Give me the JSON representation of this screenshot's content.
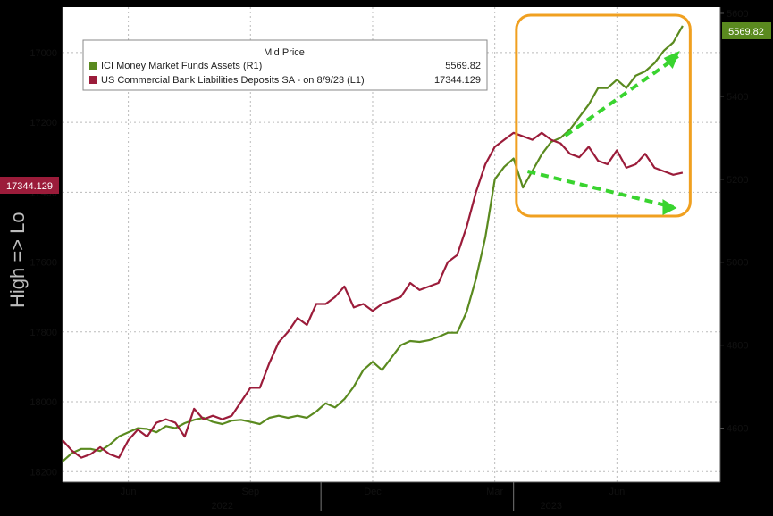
{
  "chart_data": {
    "type": "line",
    "legend": {
      "title": "Mid Price",
      "placement": "top-left",
      "entries": [
        {
          "label": "ICI Money Market Funds Assets  (R1)",
          "value": "5569.82",
          "color": "#5a8a1f"
        },
        {
          "label": "US Commercial Bank Liabilities Deposits SA -  on 8/9/23  (L1)",
          "value": "17344.129",
          "color": "#9b1c3a"
        }
      ]
    },
    "left_axis": {
      "label": "High => Lo",
      "inverted": true,
      "range": [
        16870,
        18230
      ],
      "ticks": [
        "17000",
        "17200",
        "17400",
        "17600",
        "17800",
        "18000",
        "18200"
      ],
      "tick_values": [
        17000,
        17200,
        17400,
        17600,
        17800,
        18000,
        18200
      ],
      "current_label": "17344.129"
    },
    "right_axis": {
      "range": [
        4470,
        5615
      ],
      "ticks": [
        "5600",
        "5400",
        "5200",
        "5000",
        "4800",
        "4600"
      ],
      "tick_values": [
        5600,
        5400,
        5200,
        5000,
        4800,
        4600
      ],
      "current_label": "5569.82"
    },
    "x_axis": {
      "range": [
        0,
        70
      ],
      "month_ticks": [
        "Jun",
        "Sep",
        "Dec",
        "Mar",
        "Jun"
      ],
      "month_positions": [
        7,
        20,
        33,
        46,
        59
      ],
      "year_labels": [
        "2022",
        "2023"
      ],
      "year_positions": [
        17,
        52
      ],
      "year_dividers": [
        27.5,
        48
      ]
    },
    "grid": true,
    "series": [
      {
        "name": "ICI Money Market Funds Assets  (R1)",
        "axis": "right",
        "color": "#5a8a1f",
        "x": [
          0,
          1,
          2,
          3,
          4,
          5,
          6,
          7,
          8,
          9,
          10,
          11,
          12,
          13,
          14,
          15,
          16,
          17,
          18,
          19,
          20,
          21,
          22,
          23,
          24,
          25,
          26,
          27,
          28,
          29,
          30,
          31,
          32,
          33,
          34,
          35,
          36,
          37,
          38,
          39,
          40,
          41,
          42,
          43,
          44,
          45,
          46,
          47,
          48,
          49,
          50,
          51,
          52,
          53,
          54,
          55,
          56,
          57,
          58,
          59,
          60,
          61,
          62,
          63,
          64,
          65,
          66
        ],
        "values": [
          4520,
          4540,
          4550,
          4550,
          4545,
          4560,
          4580,
          4590,
          4600,
          4598,
          4590,
          4605,
          4600,
          4612,
          4620,
          4625,
          4615,
          4610,
          4618,
          4620,
          4615,
          4610,
          4625,
          4630,
          4625,
          4630,
          4625,
          4640,
          4660,
          4650,
          4670,
          4700,
          4740,
          4760,
          4740,
          4770,
          4800,
          4810,
          4808,
          4812,
          4820,
          4830,
          4830,
          4880,
          4960,
          5060,
          5200,
          5230,
          5250,
          5180,
          5220,
          5260,
          5290,
          5300,
          5320,
          5350,
          5380,
          5420,
          5420,
          5440,
          5420,
          5450,
          5460,
          5480,
          5510,
          5530,
          5570
        ]
      },
      {
        "name": "US Commercial Bank Liabilities Deposits SA -  on 8/9/23  (L1)",
        "axis": "left",
        "color": "#9b1c3a",
        "x": [
          0,
          1,
          2,
          3,
          4,
          5,
          6,
          7,
          8,
          9,
          10,
          11,
          12,
          13,
          14,
          15,
          16,
          17,
          18,
          19,
          20,
          21,
          22,
          23,
          24,
          25,
          26,
          27,
          28,
          29,
          30,
          31,
          32,
          33,
          34,
          35,
          36,
          37,
          38,
          39,
          40,
          41,
          42,
          43,
          44,
          45,
          46,
          47,
          48,
          49,
          50,
          51,
          52,
          53,
          54,
          55,
          56,
          57,
          58,
          59,
          60,
          61,
          62,
          63,
          64,
          65,
          66
        ],
        "values": [
          18110,
          18140,
          18160,
          18150,
          18130,
          18150,
          18160,
          18110,
          18080,
          18100,
          18060,
          18050,
          18060,
          18100,
          18020,
          18050,
          18040,
          18050,
          18040,
          18000,
          17960,
          17960,
          17890,
          17830,
          17800,
          17760,
          17780,
          17720,
          17720,
          17700,
          17670,
          17730,
          17720,
          17740,
          17720,
          17710,
          17700,
          17660,
          17680,
          17670,
          17660,
          17600,
          17580,
          17500,
          17400,
          17320,
          17270,
          17250,
          17230,
          17240,
          17250,
          17230,
          17250,
          17260,
          17290,
          17300,
          17270,
          17310,
          17320,
          17280,
          17330,
          17320,
          17290,
          17330,
          17340,
          17350,
          17344
        ]
      }
    ],
    "annotations": {
      "highlight_box": "rounded orange box around recent period",
      "arrows": [
        "green dashed arrow up-right",
        "green dashed arrow down-right"
      ]
    }
  }
}
